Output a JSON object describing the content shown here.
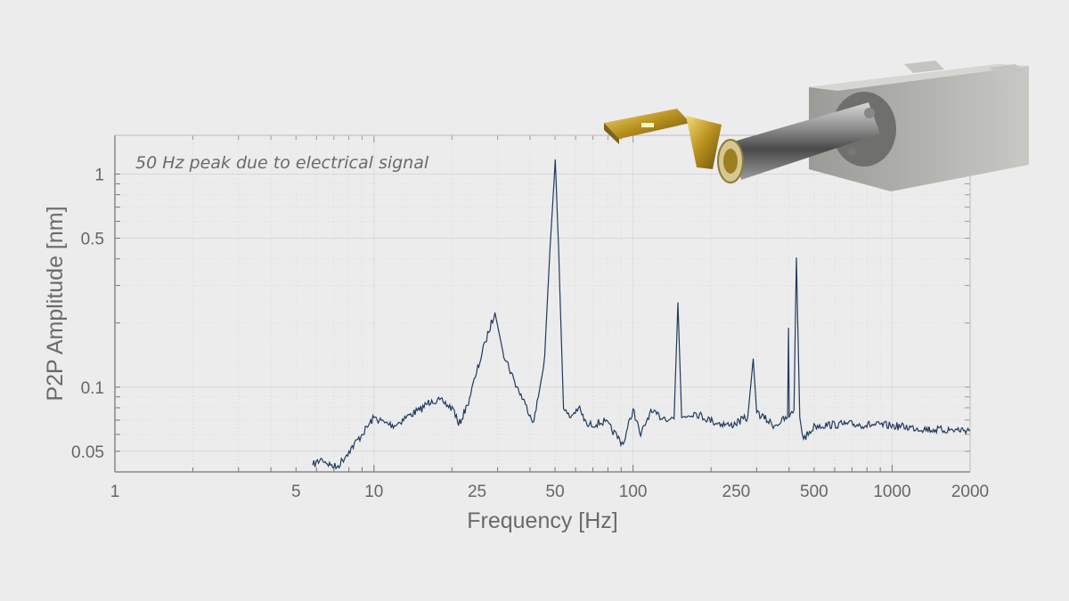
{
  "chart_data": {
    "type": "line",
    "title": "",
    "annotation": "50 Hz peak due to electrical signal",
    "xlabel": "Frequency [Hz]",
    "ylabel": "P2P Amplitude [nm]",
    "xscale": "log",
    "yscale": "log",
    "xlim": [
      1,
      2000
    ],
    "ylim": [
      0.04,
      1.52
    ],
    "xticks": [
      1,
      5,
      10,
      25,
      50,
      100,
      250,
      500,
      1000,
      2000
    ],
    "xtick_labels": [
      "1",
      "5",
      "10",
      "25",
      "50",
      "100",
      "250",
      "500",
      "1000",
      "2000"
    ],
    "yticks": [
      0.05,
      0.1,
      0.5,
      1
    ],
    "ytick_labels": [
      "0.05",
      "0.1",
      "0.5",
      "1"
    ],
    "grid": true,
    "line_color": "#1f3a5f",
    "series": [
      {
        "x": [
          5.8,
          6.3,
          6.8,
          7.2,
          8,
          9,
          10,
          11,
          12,
          13.7,
          15,
          16.7,
          18.5,
          20.4,
          21.2,
          22.9,
          24.9,
          26.9,
          29.3,
          31.4,
          34.9,
          38.4,
          41.4,
          43.5,
          45.6,
          47.8,
          50.1,
          51.6,
          53.9,
          56.9,
          61.6,
          66.5,
          78,
          91.6,
          100,
          107,
          116,
          131,
          144,
          149,
          154,
          172,
          203,
          237,
          277,
          291,
          300,
          351,
          395,
          398,
          401,
          418,
          427,
          440,
          455,
          505,
          660,
          985,
          1470,
          2000
        ],
        "y": [
          0.043,
          0.046,
          0.043,
          0.042,
          0.05,
          0.06,
          0.072,
          0.068,
          0.066,
          0.074,
          0.078,
          0.087,
          0.085,
          0.078,
          0.066,
          0.082,
          0.117,
          0.163,
          0.224,
          0.148,
          0.106,
          0.083,
          0.069,
          0.096,
          0.141,
          0.446,
          1.17,
          0.446,
          0.079,
          0.072,
          0.08,
          0.066,
          0.069,
          0.054,
          0.079,
          0.059,
          0.076,
          0.072,
          0.071,
          0.25,
          0.072,
          0.076,
          0.069,
          0.066,
          0.072,
          0.136,
          0.076,
          0.066,
          0.072,
          0.19,
          0.072,
          0.078,
          0.406,
          0.072,
          0.057,
          0.066,
          0.067,
          0.066,
          0.063,
          0.063
        ]
      }
    ]
  }
}
